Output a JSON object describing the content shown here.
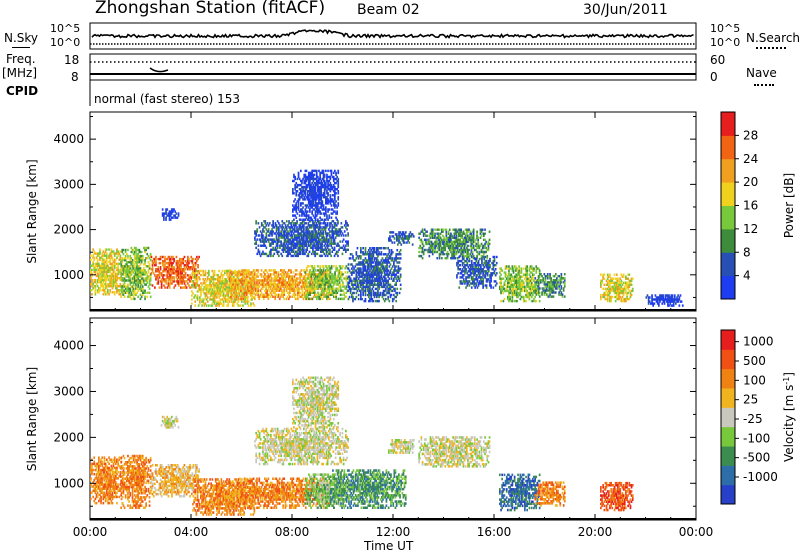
{
  "header": {
    "title": "Zhongshan Station (fitACF)",
    "beam": "Beam 02",
    "date": "30/Jun/2011"
  },
  "param_panels": {
    "nsky_label": "N.Sky",
    "nsky_ticks": [
      "10^5",
      "10^0"
    ],
    "nsearch_label": "N.Search",
    "nsearch_ticks": [
      "10^5",
      "10^0"
    ],
    "freq_label": "Freq.",
    "freq_unit": "[MHz]",
    "freq_ticks": [
      "18",
      "8"
    ],
    "nave_label": "Nave",
    "nave_ticks": [
      "60",
      "0"
    ],
    "cpid_label": "CPID",
    "cpid_text": "normal (fast stereo) 153"
  },
  "chart_data": [
    {
      "type": "heatmap",
      "name": "power",
      "ylabel": "Slant Range [km]",
      "yticks": [
        1000,
        2000,
        3000,
        4000
      ],
      "ylim": [
        200,
        4600
      ],
      "xlim_hours": [
        0,
        24
      ],
      "colorbar": {
        "label": "Power [dB]",
        "ticks": [
          "4",
          "8",
          "12",
          "16",
          "20",
          "24",
          "28"
        ],
        "colors": [
          "#1e3cf0",
          "#2850b4",
          "#3c8c3c",
          "#78c83c",
          "#f0d21e",
          "#f0a01e",
          "#f06414",
          "#e61e1e"
        ]
      },
      "echo_regions": [
        {
          "t": [
            0.0,
            1.3
          ],
          "r": [
            550,
            1550
          ],
          "level": 4
        },
        {
          "t": [
            1.2,
            2.4
          ],
          "r": [
            450,
            1600
          ],
          "level": 3
        },
        {
          "t": [
            2.4,
            4.3
          ],
          "r": [
            700,
            1400
          ],
          "level": 6
        },
        {
          "t": [
            4.0,
            6.5
          ],
          "r": [
            300,
            1100
          ],
          "level": 4
        },
        {
          "t": [
            5.5,
            9.5
          ],
          "r": [
            450,
            1100
          ],
          "level": 5
        },
        {
          "t": [
            8.5,
            10.2
          ],
          "r": [
            450,
            1200
          ],
          "level": 3
        },
        {
          "t": [
            6.5,
            10.2
          ],
          "r": [
            1400,
            2200
          ],
          "level": 1
        },
        {
          "t": [
            8.0,
            9.8
          ],
          "r": [
            2200,
            3300
          ],
          "level": 0
        },
        {
          "t": [
            2.8,
            3.5
          ],
          "r": [
            2200,
            2450
          ],
          "level": 0
        },
        {
          "t": [
            10.2,
            12.3
          ],
          "r": [
            400,
            1600
          ],
          "level": 1
        },
        {
          "t": [
            11.8,
            12.8
          ],
          "r": [
            1650,
            1950
          ],
          "level": 1
        },
        {
          "t": [
            13.0,
            15.8
          ],
          "r": [
            1350,
            2000
          ],
          "level": 2
        },
        {
          "t": [
            14.5,
            16.1
          ],
          "r": [
            700,
            1400
          ],
          "level": 1
        },
        {
          "t": [
            16.2,
            17.8
          ],
          "r": [
            400,
            1200
          ],
          "level": 3
        },
        {
          "t": [
            17.6,
            18.8
          ],
          "r": [
            500,
            1000
          ],
          "level": 2
        },
        {
          "t": [
            20.2,
            21.5
          ],
          "r": [
            400,
            1000
          ],
          "level": 4
        },
        {
          "t": [
            22.0,
            23.5
          ],
          "r": [
            300,
            550
          ],
          "level": 0
        }
      ]
    },
    {
      "type": "heatmap",
      "name": "velocity",
      "ylabel": "Slant Range [km]",
      "yticks": [
        1000,
        2000,
        3000,
        4000
      ],
      "ylim": [
        200,
        4600
      ],
      "xlim_hours": [
        0,
        24
      ],
      "colorbar": {
        "label": "Velocity [m s",
        "label_sup": "-1",
        "label_end": "]",
        "ticks": [
          "1000",
          "500",
          "100",
          "25",
          "-25",
          "-100",
          "-500",
          "-1000"
        ],
        "colors": [
          "#2840c8",
          "#2d6ea8",
          "#3c8c50",
          "#78c83c",
          "#c8c8be",
          "#f0b41e",
          "#f08214",
          "#f05014",
          "#e61e1e"
        ]
      },
      "echo_regions": [
        {
          "t": [
            0.0,
            1.3
          ],
          "r": [
            550,
            1550
          ],
          "level": 6
        },
        {
          "t": [
            1.2,
            2.4
          ],
          "r": [
            450,
            1600
          ],
          "level": 6
        },
        {
          "t": [
            2.4,
            4.3
          ],
          "r": [
            700,
            1400
          ],
          "level": 5
        },
        {
          "t": [
            4.0,
            6.5
          ],
          "r": [
            300,
            1100
          ],
          "level": 6
        },
        {
          "t": [
            5.5,
            9.5
          ],
          "r": [
            450,
            1100
          ],
          "level": 6
        },
        {
          "t": [
            8.5,
            10.2
          ],
          "r": [
            450,
            1200
          ],
          "level": 3
        },
        {
          "t": [
            9.5,
            12.5
          ],
          "r": [
            450,
            1300
          ],
          "level": 2
        },
        {
          "t": [
            6.5,
            10.2
          ],
          "r": [
            1400,
            2200
          ],
          "level": 4
        },
        {
          "t": [
            8.0,
            9.8
          ],
          "r": [
            2200,
            3300
          ],
          "level": 4
        },
        {
          "t": [
            2.8,
            3.5
          ],
          "r": [
            2200,
            2450
          ],
          "level": 4
        },
        {
          "t": [
            11.8,
            12.8
          ],
          "r": [
            1650,
            1950
          ],
          "level": 4
        },
        {
          "t": [
            13.0,
            15.8
          ],
          "r": [
            1350,
            2000
          ],
          "level": 4
        },
        {
          "t": [
            16.2,
            17.8
          ],
          "r": [
            400,
            1200
          ],
          "level": 1
        },
        {
          "t": [
            17.6,
            18.8
          ],
          "r": [
            500,
            1000
          ],
          "level": 6
        },
        {
          "t": [
            20.2,
            21.5
          ],
          "r": [
            400,
            1000
          ],
          "level": 7
        }
      ]
    }
  ],
  "xaxis": {
    "label": "Time UT",
    "ticks": [
      "00:00",
      "04:00",
      "08:00",
      "12:00",
      "16:00",
      "20:00",
      "00:00"
    ]
  }
}
